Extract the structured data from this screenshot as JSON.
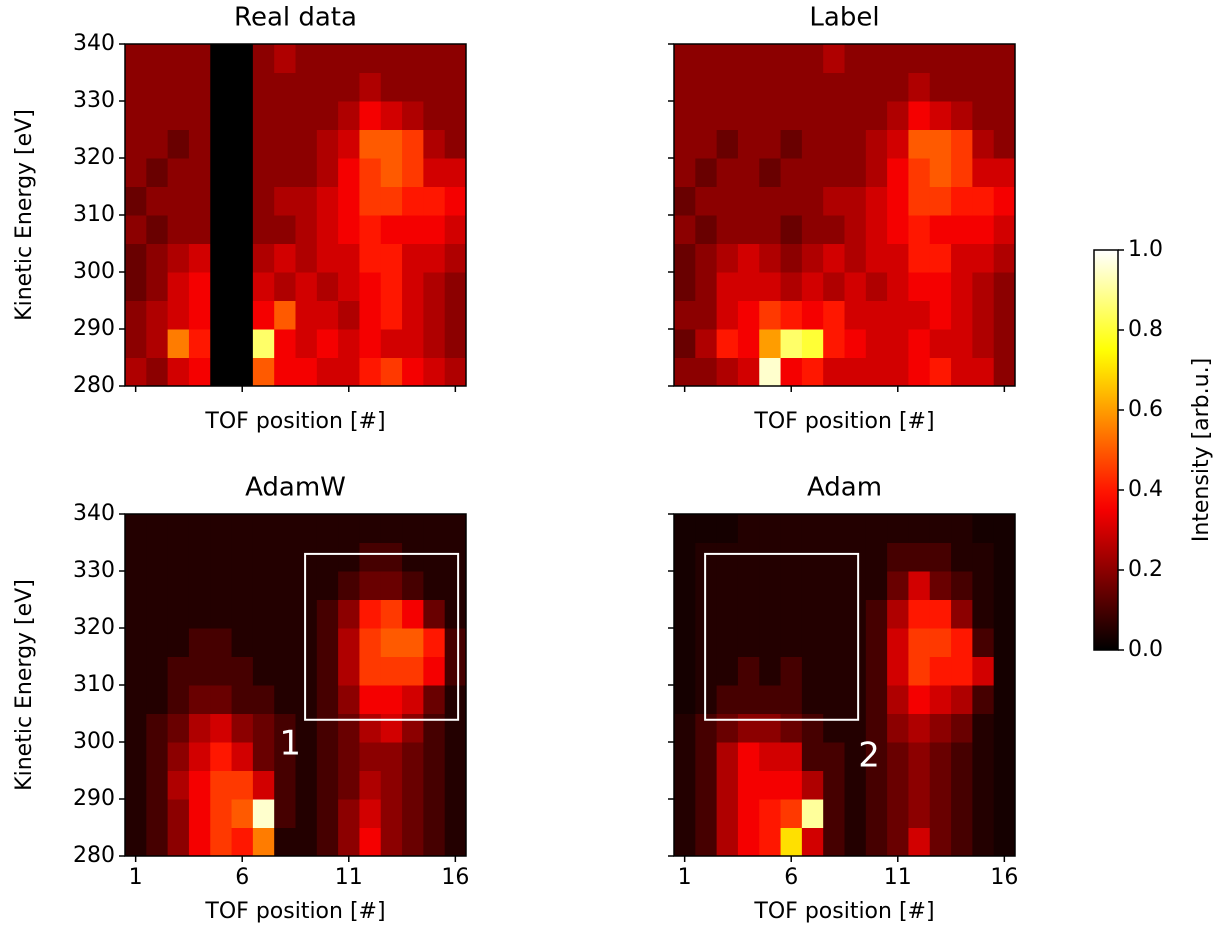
{
  "chart_data": [
    {
      "type": "heatmap",
      "title": "Real data",
      "xlabel": "TOF position [#]",
      "ylabel": "Kinetic Energy [eV]",
      "colormap": "hot",
      "x": [
        1,
        2,
        3,
        4,
        5,
        6,
        7,
        8,
        9,
        10,
        11,
        12,
        13,
        14,
        15,
        16
      ],
      "ybins": [
        280,
        285,
        290,
        295,
        300,
        305,
        310,
        315,
        320,
        325,
        330,
        335,
        340
      ],
      "xlim": [
        0.5,
        16.5
      ],
      "ylim": [
        280,
        340
      ],
      "xticks": [
        1,
        6,
        11,
        16
      ],
      "yticks": [
        280,
        290,
        300,
        310,
        320,
        330,
        340
      ],
      "values": [
        [
          0.25,
          0.2,
          0.3,
          0.35,
          0,
          0,
          0.5,
          0.35,
          0.35,
          0.3,
          0.3,
          0.4,
          0.45,
          0.35,
          0.3,
          0.25
        ],
        [
          0.2,
          0.25,
          0.55,
          0.4,
          0,
          0,
          0.85,
          0.35,
          0.3,
          0.35,
          0.3,
          0.35,
          0.3,
          0.3,
          0.25,
          0.2
        ],
        [
          0.2,
          0.25,
          0.3,
          0.35,
          0,
          0,
          0.35,
          0.5,
          0.3,
          0.3,
          0.25,
          0.35,
          0.4,
          0.3,
          0.25,
          0.2
        ],
        [
          0.15,
          0.2,
          0.3,
          0.35,
          0,
          0,
          0.3,
          0.25,
          0.3,
          0.25,
          0.3,
          0.35,
          0.4,
          0.3,
          0.25,
          0.2
        ],
        [
          0.15,
          0.2,
          0.25,
          0.3,
          0,
          0,
          0.25,
          0.3,
          0.25,
          0.3,
          0.3,
          0.4,
          0.4,
          0.3,
          0.3,
          0.25
        ],
        [
          0.2,
          0.15,
          0.2,
          0.2,
          0,
          0,
          0.2,
          0.2,
          0.25,
          0.3,
          0.35,
          0.4,
          0.35,
          0.35,
          0.35,
          0.3
        ],
        [
          0.15,
          0.2,
          0.2,
          0.2,
          0,
          0,
          0.2,
          0.25,
          0.25,
          0.3,
          0.35,
          0.45,
          0.45,
          0.4,
          0.4,
          0.35
        ],
        [
          0.2,
          0.15,
          0.2,
          0.2,
          0,
          0,
          0.2,
          0.2,
          0.2,
          0.25,
          0.35,
          0.45,
          0.5,
          0.45,
          0.3,
          0.3
        ],
        [
          0.2,
          0.2,
          0.15,
          0.2,
          0,
          0,
          0.2,
          0.2,
          0.2,
          0.25,
          0.3,
          0.5,
          0.5,
          0.45,
          0.25,
          0.2
        ],
        [
          0.2,
          0.2,
          0.2,
          0.2,
          0,
          0,
          0.2,
          0.2,
          0.2,
          0.2,
          0.25,
          0.35,
          0.3,
          0.25,
          0.2,
          0.2
        ],
        [
          0.2,
          0.2,
          0.2,
          0.2,
          0,
          0,
          0.2,
          0.2,
          0.2,
          0.2,
          0.2,
          0.25,
          0.2,
          0.2,
          0.2,
          0.2
        ],
        [
          0.2,
          0.2,
          0.2,
          0.2,
          0,
          0,
          0.2,
          0.25,
          0.2,
          0.2,
          0.2,
          0.2,
          0.2,
          0.2,
          0.2,
          0.2
        ]
      ]
    },
    {
      "type": "heatmap",
      "title": "Label",
      "xlabel": "TOF position [#]",
      "colormap": "hot",
      "x": [
        1,
        2,
        3,
        4,
        5,
        6,
        7,
        8,
        9,
        10,
        11,
        12,
        13,
        14,
        15,
        16
      ],
      "ybins": [
        280,
        285,
        290,
        295,
        300,
        305,
        310,
        315,
        320,
        325,
        330,
        335,
        340
      ],
      "xlim": [
        0.5,
        16.5
      ],
      "ylim": [
        280,
        340
      ],
      "xticks": [
        1,
        6,
        11,
        16
      ],
      "yticks": [
        280,
        290,
        300,
        310,
        320,
        330,
        340
      ],
      "values": [
        [
          0.2,
          0.2,
          0.25,
          0.3,
          0.95,
          0.35,
          0.4,
          0.3,
          0.3,
          0.3,
          0.3,
          0.35,
          0.4,
          0.3,
          0.3,
          0.2
        ],
        [
          0.15,
          0.25,
          0.4,
          0.35,
          0.6,
          0.85,
          0.8,
          0.4,
          0.35,
          0.3,
          0.3,
          0.35,
          0.3,
          0.3,
          0.25,
          0.2
        ],
        [
          0.2,
          0.2,
          0.3,
          0.35,
          0.45,
          0.4,
          0.35,
          0.4,
          0.3,
          0.3,
          0.3,
          0.3,
          0.35,
          0.3,
          0.25,
          0.2
        ],
        [
          0.15,
          0.2,
          0.3,
          0.3,
          0.3,
          0.25,
          0.3,
          0.25,
          0.3,
          0.25,
          0.3,
          0.35,
          0.35,
          0.3,
          0.25,
          0.2
        ],
        [
          0.15,
          0.2,
          0.25,
          0.3,
          0.25,
          0.2,
          0.25,
          0.3,
          0.25,
          0.3,
          0.3,
          0.4,
          0.4,
          0.3,
          0.3,
          0.25
        ],
        [
          0.2,
          0.15,
          0.2,
          0.2,
          0.2,
          0.15,
          0.2,
          0.2,
          0.25,
          0.3,
          0.35,
          0.4,
          0.35,
          0.35,
          0.35,
          0.3
        ],
        [
          0.15,
          0.2,
          0.2,
          0.2,
          0.2,
          0.2,
          0.2,
          0.25,
          0.25,
          0.3,
          0.35,
          0.45,
          0.45,
          0.4,
          0.4,
          0.35
        ],
        [
          0.2,
          0.15,
          0.2,
          0.2,
          0.15,
          0.2,
          0.2,
          0.2,
          0.2,
          0.25,
          0.35,
          0.45,
          0.5,
          0.45,
          0.3,
          0.3
        ],
        [
          0.2,
          0.2,
          0.15,
          0.2,
          0.2,
          0.15,
          0.2,
          0.2,
          0.2,
          0.25,
          0.3,
          0.5,
          0.5,
          0.45,
          0.25,
          0.2
        ],
        [
          0.2,
          0.2,
          0.2,
          0.2,
          0.2,
          0.2,
          0.2,
          0.2,
          0.2,
          0.2,
          0.25,
          0.35,
          0.3,
          0.25,
          0.2,
          0.2
        ],
        [
          0.2,
          0.2,
          0.2,
          0.2,
          0.2,
          0.2,
          0.2,
          0.2,
          0.2,
          0.2,
          0.2,
          0.25,
          0.2,
          0.2,
          0.2,
          0.2
        ],
        [
          0.2,
          0.2,
          0.2,
          0.2,
          0.2,
          0.2,
          0.2,
          0.25,
          0.2,
          0.2,
          0.2,
          0.2,
          0.2,
          0.2,
          0.2,
          0.2
        ]
      ]
    },
    {
      "type": "heatmap",
      "title": "AdamW",
      "xlabel": "TOF position [#]",
      "ylabel": "Kinetic Energy [eV]",
      "colormap": "hot",
      "x": [
        1,
        2,
        3,
        4,
        5,
        6,
        7,
        8,
        9,
        10,
        11,
        12,
        13,
        14,
        15,
        16
      ],
      "ybins": [
        280,
        285,
        290,
        295,
        300,
        305,
        310,
        315,
        320,
        325,
        330,
        335,
        340
      ],
      "xlim": [
        0.5,
        16.5
      ],
      "ylim": [
        280,
        340
      ],
      "xticks": [
        1,
        6,
        11,
        16
      ],
      "yticks": [
        280,
        290,
        300,
        310,
        320,
        330,
        340
      ],
      "boxes": [
        {
          "x": [
            8.95,
            16.13
          ],
          "y": [
            303.9,
            333.0
          ]
        }
      ],
      "annotations": [
        {
          "text": "1",
          "x": 8.25,
          "y": 299.5
        }
      ],
      "values": [
        [
          0.05,
          0.1,
          0.2,
          0.35,
          0.45,
          0.4,
          0.55,
          0.05,
          0.05,
          0.1,
          0.2,
          0.35,
          0.2,
          0.15,
          0.1,
          0.05
        ],
        [
          0.05,
          0.1,
          0.2,
          0.35,
          0.45,
          0.5,
          0.95,
          0.1,
          0.05,
          0.1,
          0.2,
          0.3,
          0.2,
          0.15,
          0.1,
          0.05
        ],
        [
          0.05,
          0.1,
          0.25,
          0.35,
          0.45,
          0.45,
          0.3,
          0.1,
          0.05,
          0.1,
          0.15,
          0.25,
          0.2,
          0.15,
          0.1,
          0.05
        ],
        [
          0.05,
          0.1,
          0.2,
          0.3,
          0.4,
          0.3,
          0.15,
          0.1,
          0.05,
          0.1,
          0.15,
          0.2,
          0.2,
          0.15,
          0.1,
          0.05
        ],
        [
          0.05,
          0.1,
          0.15,
          0.25,
          0.3,
          0.2,
          0.15,
          0.1,
          0.05,
          0.1,
          0.15,
          0.25,
          0.3,
          0.2,
          0.1,
          0.05
        ],
        [
          0.05,
          0.05,
          0.1,
          0.15,
          0.15,
          0.1,
          0.1,
          0.05,
          0.05,
          0.1,
          0.2,
          0.35,
          0.35,
          0.3,
          0.15,
          0.05
        ],
        [
          0.05,
          0.05,
          0.1,
          0.1,
          0.1,
          0.1,
          0.05,
          0.05,
          0.05,
          0.1,
          0.25,
          0.45,
          0.45,
          0.45,
          0.35,
          0.1
        ],
        [
          0.05,
          0.05,
          0.05,
          0.1,
          0.1,
          0.05,
          0.05,
          0.05,
          0.05,
          0.1,
          0.25,
          0.45,
          0.5,
          0.5,
          0.4,
          0.1
        ],
        [
          0.05,
          0.05,
          0.05,
          0.05,
          0.05,
          0.05,
          0.05,
          0.05,
          0.05,
          0.1,
          0.2,
          0.4,
          0.45,
          0.35,
          0.15,
          0.05
        ],
        [
          0.05,
          0.05,
          0.05,
          0.05,
          0.05,
          0.05,
          0.05,
          0.05,
          0.05,
          0.05,
          0.1,
          0.15,
          0.15,
          0.1,
          0.05,
          0.05
        ],
        [
          0.05,
          0.05,
          0.05,
          0.05,
          0.05,
          0.05,
          0.05,
          0.05,
          0.05,
          0.05,
          0.05,
          0.1,
          0.1,
          0.05,
          0.05,
          0.05
        ],
        [
          0.05,
          0.05,
          0.05,
          0.05,
          0.05,
          0.05,
          0.05,
          0.05,
          0.05,
          0.05,
          0.05,
          0.05,
          0.05,
          0.05,
          0.05,
          0.05
        ]
      ]
    },
    {
      "type": "heatmap",
      "title": "Adam",
      "xlabel": "TOF position [#]",
      "colormap": "hot",
      "x": [
        1,
        2,
        3,
        4,
        5,
        6,
        7,
        8,
        9,
        10,
        11,
        12,
        13,
        14,
        15,
        16
      ],
      "ybins": [
        280,
        285,
        290,
        295,
        300,
        305,
        310,
        315,
        320,
        325,
        330,
        335,
        340
      ],
      "xlim": [
        0.5,
        16.5
      ],
      "ylim": [
        280,
        340
      ],
      "xticks": [
        1,
        6,
        11,
        16
      ],
      "yticks": [
        280,
        290,
        300,
        310,
        320,
        330,
        340
      ],
      "boxes": [
        {
          "x": [
            1.96,
            9.14
          ],
          "y": [
            303.9,
            333.0
          ]
        }
      ],
      "annotations": [
        {
          "text": "2",
          "x": 9.65,
          "y": 297.4
        }
      ],
      "values": [
        [
          0.05,
          0.1,
          0.25,
          0.35,
          0.4,
          0.7,
          0.3,
          0.1,
          0.05,
          0.1,
          0.15,
          0.3,
          0.15,
          0.1,
          0.05,
          0.03
        ],
        [
          0.05,
          0.1,
          0.25,
          0.35,
          0.4,
          0.45,
          0.9,
          0.1,
          0.05,
          0.1,
          0.15,
          0.2,
          0.15,
          0.1,
          0.05,
          0.03
        ],
        [
          0.05,
          0.1,
          0.25,
          0.35,
          0.35,
          0.35,
          0.25,
          0.1,
          0.05,
          0.1,
          0.15,
          0.2,
          0.15,
          0.1,
          0.05,
          0.03
        ],
        [
          0.05,
          0.1,
          0.25,
          0.35,
          0.3,
          0.3,
          0.1,
          0.1,
          0.05,
          0.1,
          0.15,
          0.2,
          0.15,
          0.1,
          0.05,
          0.03
        ],
        [
          0.05,
          0.1,
          0.15,
          0.2,
          0.2,
          0.15,
          0.1,
          0.05,
          0.05,
          0.1,
          0.2,
          0.25,
          0.2,
          0.15,
          0.05,
          0.03
        ],
        [
          0.03,
          0.05,
          0.1,
          0.1,
          0.1,
          0.1,
          0.05,
          0.05,
          0.05,
          0.1,
          0.25,
          0.35,
          0.3,
          0.25,
          0.1,
          0.03
        ],
        [
          0.03,
          0.05,
          0.05,
          0.1,
          0.05,
          0.1,
          0.05,
          0.05,
          0.05,
          0.1,
          0.3,
          0.45,
          0.4,
          0.4,
          0.3,
          0.03
        ],
        [
          0.03,
          0.05,
          0.05,
          0.05,
          0.05,
          0.05,
          0.05,
          0.05,
          0.05,
          0.1,
          0.3,
          0.45,
          0.45,
          0.4,
          0.1,
          0.03
        ],
        [
          0.03,
          0.05,
          0.05,
          0.05,
          0.05,
          0.05,
          0.05,
          0.05,
          0.05,
          0.1,
          0.25,
          0.4,
          0.4,
          0.2,
          0.05,
          0.03
        ],
        [
          0.03,
          0.05,
          0.05,
          0.05,
          0.05,
          0.05,
          0.05,
          0.05,
          0.05,
          0.05,
          0.15,
          0.3,
          0.15,
          0.1,
          0.05,
          0.03
        ],
        [
          0.03,
          0.05,
          0.05,
          0.05,
          0.05,
          0.05,
          0.05,
          0.05,
          0.05,
          0.05,
          0.1,
          0.1,
          0.1,
          0.05,
          0.05,
          0.03
        ],
        [
          0.03,
          0.03,
          0.03,
          0.05,
          0.05,
          0.05,
          0.05,
          0.05,
          0.05,
          0.05,
          0.05,
          0.05,
          0.05,
          0.05,
          0.03,
          0.03
        ]
      ]
    },
    {
      "type": "colorbar",
      "label": "Intensity [arb.u.]",
      "colormap": "hot",
      "ylim": [
        0,
        1
      ],
      "yticks": [
        {
          "value": 0,
          "label": "0.0"
        },
        {
          "value": 0.2,
          "label": "0.2"
        },
        {
          "value": 0.4,
          "label": "0.4"
        },
        {
          "value": 0.6,
          "label": "0.6"
        },
        {
          "value": 0.8,
          "label": "0.8"
        },
        {
          "value": 1,
          "label": "1.0"
        }
      ]
    }
  ]
}
